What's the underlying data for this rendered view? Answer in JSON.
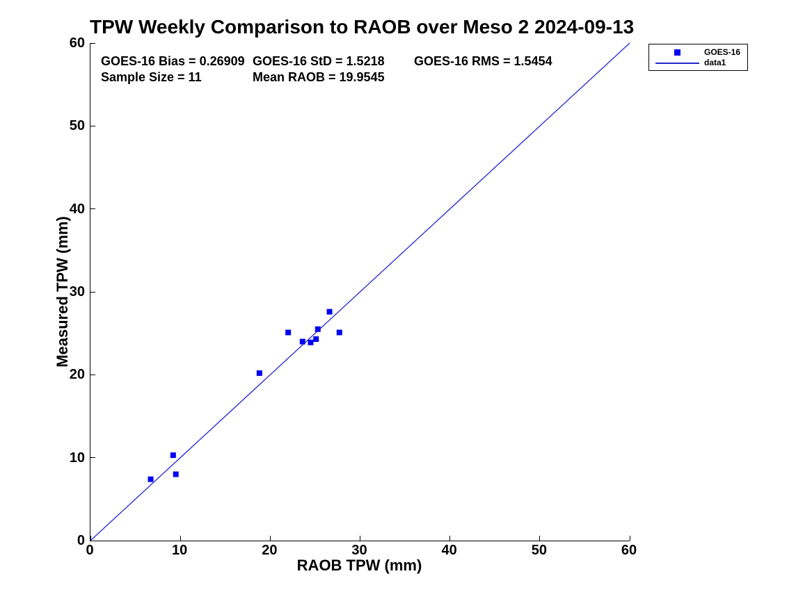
{
  "title": "TPW Weekly Comparison to RAOB over Meso 2 2024-09-13",
  "stats": {
    "bias": "GOES-16 Bias = 0.26909",
    "std": "GOES-16 StD = 1.5218",
    "rms": "GOES-16 RMS = 1.5454",
    "sample_size": "Sample Size = 11",
    "mean_raob": "Mean RAOB = 19.9545"
  },
  "legend": {
    "position": "top-right-outside",
    "items": [
      {
        "label": "GOES-16",
        "swatch": "square-marker"
      },
      {
        "label": "data1",
        "swatch": "line"
      }
    ]
  },
  "colors": {
    "marker": "#0202f2",
    "line": "#2525cd",
    "text": "#000000",
    "axis": "#000000",
    "background": "#ffffff"
  },
  "chart_data": {
    "type": "scatter",
    "title": "TPW Weekly Comparison to RAOB over Meso 2 2024-09-13",
    "xlabel": "RAOB TPW (mm)",
    "ylabel": "Measured TPW (mm)",
    "xlim": [
      0,
      60
    ],
    "ylim": [
      0,
      60
    ],
    "xticks": [
      0,
      10,
      20,
      30,
      40,
      50,
      60
    ],
    "yticks": [
      0,
      10,
      20,
      30,
      40,
      50,
      60
    ],
    "grid": false,
    "legend_position": "top-right-outside",
    "annotations": [
      "GOES-16 Bias = 0.26909",
      "GOES-16 StD = 1.5218",
      "GOES-16 RMS = 1.5454",
      "Sample Size = 11",
      "Mean RAOB = 19.9545"
    ],
    "series": [
      {
        "name": "GOES-16",
        "type": "scatter",
        "marker": "square",
        "color": "#0202f2",
        "points": [
          [
            6.7,
            7.4
          ],
          [
            9.2,
            10.3
          ],
          [
            9.5,
            8.0
          ],
          [
            18.8,
            20.2
          ],
          [
            22.0,
            25.1
          ],
          [
            23.6,
            24.0
          ],
          [
            24.5,
            23.9
          ],
          [
            25.1,
            24.3
          ],
          [
            25.3,
            25.5
          ],
          [
            26.6,
            27.6
          ],
          [
            27.7,
            25.1
          ]
        ]
      },
      {
        "name": "data1",
        "type": "line",
        "color": "#2525cd",
        "points": [
          [
            0,
            0
          ],
          [
            60,
            60
          ]
        ]
      }
    ]
  }
}
